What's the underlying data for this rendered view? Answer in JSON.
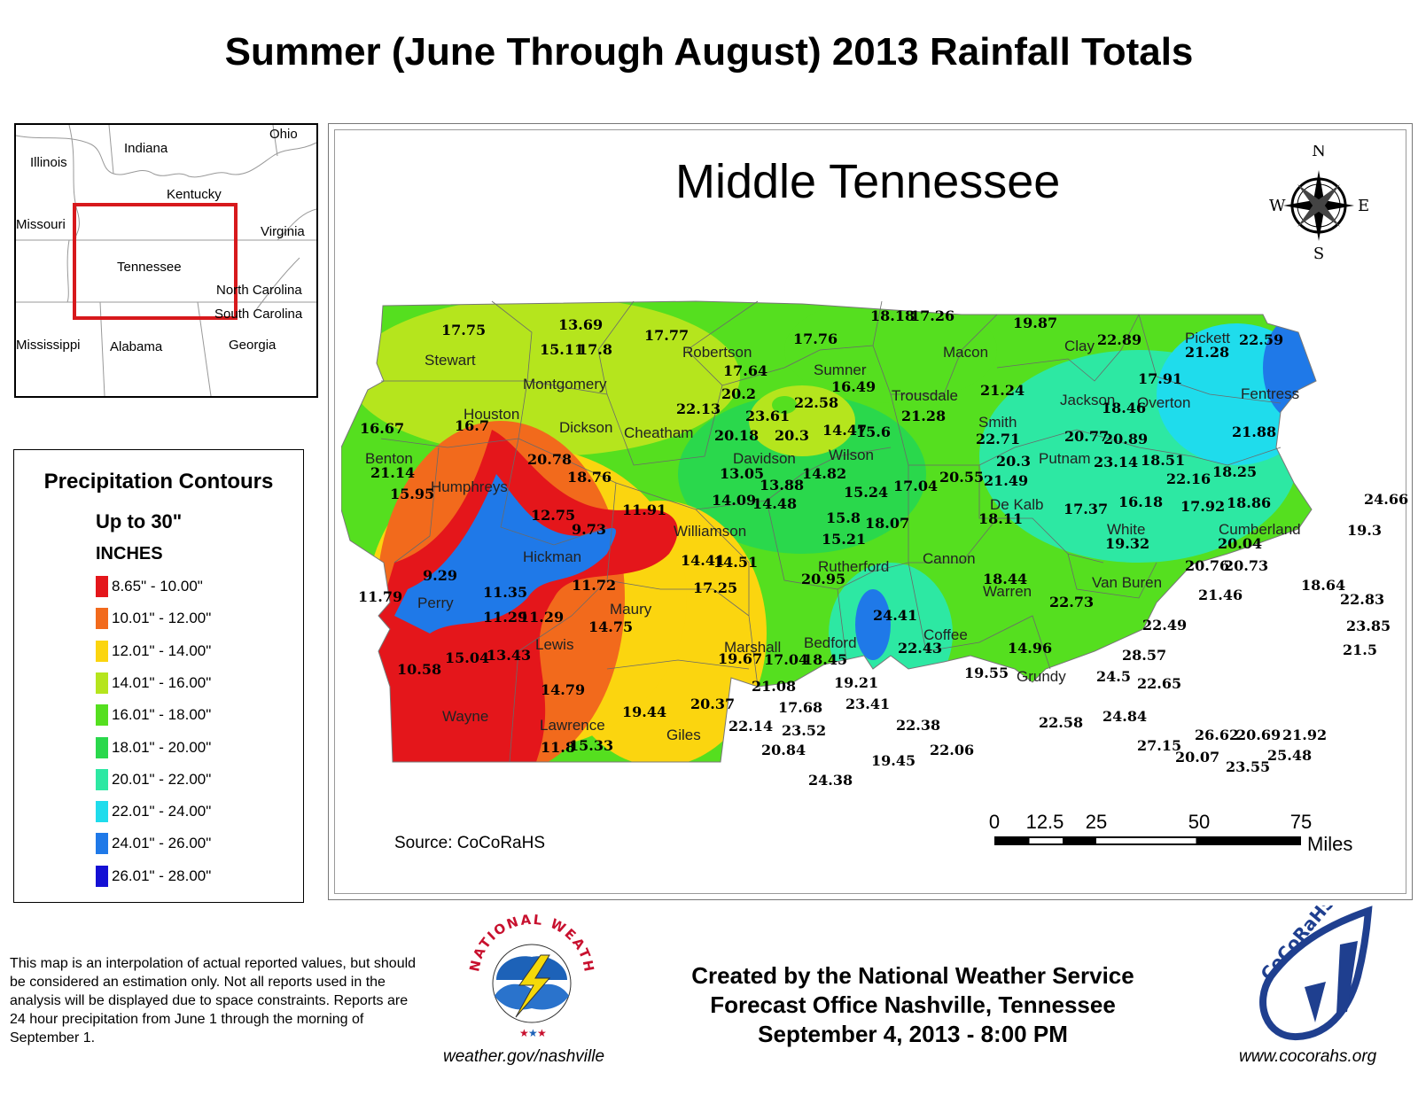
{
  "title": "Summer (June Through August) 2013 Rainfall Totals",
  "inset_map": {
    "labels": [
      "Ohio",
      "Indiana",
      "Illinois",
      "Kentucky",
      "Missouri",
      "Virginia",
      "Tennessee",
      "North Carolina",
      "South Carolina",
      "Mississippi",
      "Alabama",
      "Georgia"
    ],
    "highlight_color": "#d7191c"
  },
  "legend": {
    "title": "Precipitation Contours",
    "subtitle": "Up to 30\"",
    "units": "INCHES",
    "items": [
      {
        "label": "8.65\" - 10.00\"",
        "color": "#e4161b"
      },
      {
        "label": "10.01\" - 12.00\"",
        "color": "#f26a1c"
      },
      {
        "label": "12.01\" - 14.00\"",
        "color": "#fbd50f"
      },
      {
        "label": "14.01\" - 16.00\"",
        "color": "#b5e51d"
      },
      {
        "label": "16.01\" - 18.00\"",
        "color": "#55df1f"
      },
      {
        "label": "18.01\" - 20.00\"",
        "color": "#2ad84c"
      },
      {
        "label": "20.01\" - 22.00\"",
        "color": "#2de8a3"
      },
      {
        "label": "22.01\" - 24.00\"",
        "color": "#1fdcec"
      },
      {
        "label": "24.01\" - 26.00\"",
        "color": "#1f79e8"
      },
      {
        "label": "26.01\" - 28.00\"",
        "color": "#1410d4"
      }
    ]
  },
  "map": {
    "title": "Middle Tennessee",
    "compass": {
      "n": "N",
      "s": "S",
      "e": "E",
      "w": "W"
    },
    "counties": [
      "Stewart",
      "Montgomery",
      "Robertson",
      "Sumner",
      "Macon",
      "Clay",
      "Pickett",
      "Fentress",
      "Houston",
      "Dickson",
      "Cheatham",
      "Davidson",
      "Trousdale",
      "Smith",
      "Jackson",
      "Overton",
      "Benton",
      "Humphreys",
      "Wilson",
      "Putnam",
      "Williamson",
      "De Kalb",
      "White",
      "Cumberland",
      "Hickman",
      "Rutherford",
      "Cannon",
      "Van Buren",
      "Perry",
      "Maury",
      "Warren",
      "Lewis",
      "Marshall",
      "Bedford",
      "Coffee",
      "Grundy",
      "Wayne",
      "Lawrence",
      "Giles"
    ],
    "values": [
      "17.75",
      "13.69",
      "15.11",
      "17.8",
      "17.77",
      "17.76",
      "18.18",
      "17.26",
      "19.87",
      "22.89",
      "21.28",
      "22.59",
      "17.64",
      "20.2",
      "22.13",
      "23.61",
      "22.58",
      "16.49",
      "21.24",
      "17.91",
      "18.46",
      "16.67",
      "16.7",
      "20.18",
      "20.3",
      "14.47",
      "15.6",
      "21.28",
      "22.71",
      "20.77",
      "20.89",
      "21.88",
      "21.14",
      "20.78",
      "18.76",
      "13.05",
      "13.88",
      "14.82",
      "20.3",
      "21.49",
      "23.14",
      "18.51",
      "22.16",
      "18.25",
      "15.95",
      "14.09",
      "14.48",
      "15.24",
      "17.04",
      "20.55",
      "12.75",
      "11.91",
      "9.73",
      "15.8",
      "18.07",
      "18.11",
      "17.37",
      "16.18",
      "17.92",
      "18.86",
      "24.66",
      "15.21",
      "19.32",
      "20.04",
      "19.3",
      "14.41",
      "14.51",
      "9.29",
      "11.72",
      "20.95",
      "18.44",
      "20.76",
      "20.73",
      "18.64",
      "11.79",
      "11.35",
      "17.25",
      "22.73",
      "21.46",
      "22.83",
      "11.29",
      "11.29",
      "14.75",
      "24.41",
      "22.49",
      "23.85",
      "13.43",
      "15.04",
      "19.67",
      "17.04",
      "18.45",
      "22.43",
      "14.96",
      "28.57",
      "21.5",
      "10.58",
      "19.55",
      "24.5",
      "22.65",
      "21.08",
      "19.21",
      "14.79",
      "19.44",
      "20.37",
      "17.68",
      "23.41",
      "22.38",
      "22.58",
      "24.84",
      "22.14",
      "23.52",
      "22.06",
      "26.62",
      "20.69",
      "21.92",
      "27.15",
      "11.8",
      "15.33",
      "20.84",
      "19.45",
      "20.07",
      "25.48",
      "23.55",
      "24.38"
    ],
    "source": "Source: CoCoRaHS",
    "scale": {
      "ticks": [
        "0",
        "12.5",
        "25",
        "50",
        "75"
      ],
      "units": "Miles"
    }
  },
  "footer": {
    "disclaimer": "This map is an interpolation of actual reported values, but should be considered an estimation only. Not all reports used in the analysis will be displayed due to space constraints. Reports are 24 hour precipitation from June 1 through the morning of September 1.",
    "nws_logo_text": "NATIONAL WEATHER SERVICE",
    "nws_url": "weather.gov/nashville",
    "credit_lines": [
      "Created by the National Weather Service",
      "Forecast Office Nashville, Tennessee",
      "September 4, 2013 - 8:00 PM"
    ],
    "cocorahs_logo_text": "CoCoRaHS",
    "cocorahs_url": "www.cocorahs.org"
  }
}
